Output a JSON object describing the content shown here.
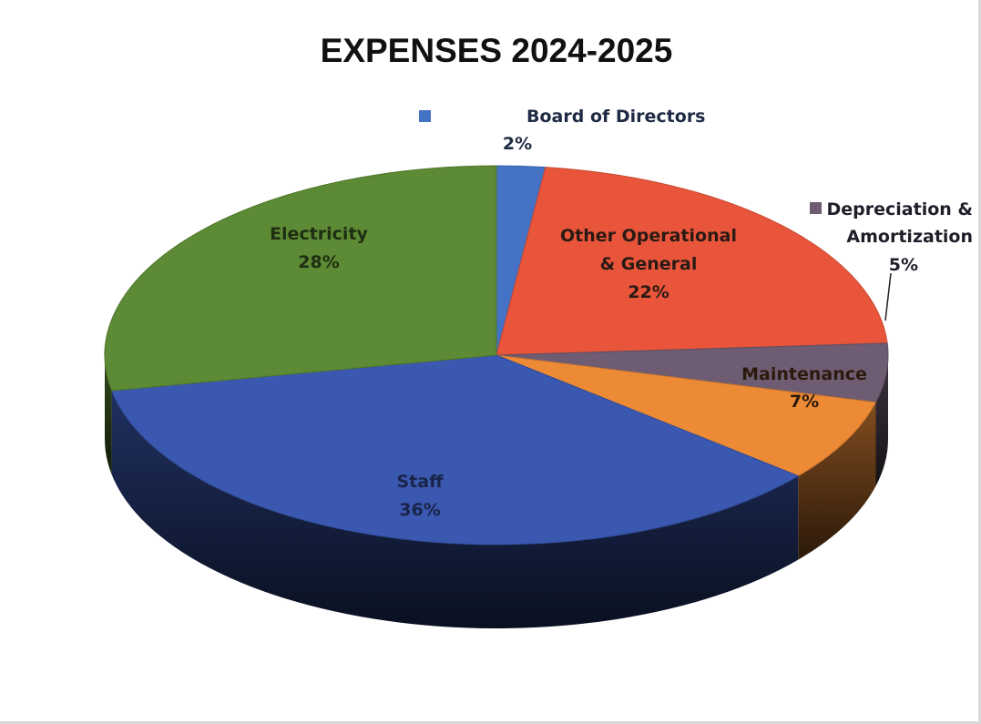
{
  "chart_data": {
    "type": "pie",
    "style": "3d",
    "title": "EXPENSES 2024-2025",
    "slices": [
      {
        "label": "Board of Directors",
        "label_lines": [
          "Board of Directors",
          "2%"
        ],
        "value": 2,
        "display": "2%",
        "color": "#4472c4",
        "legend_key": true,
        "label_color": "#1f2a44"
      },
      {
        "label": "Other Operational & General",
        "label_lines": [
          "Other Operational",
          "& General",
          "22%"
        ],
        "value": 22,
        "display": "22%",
        "color": "#e8553b",
        "legend_key": false,
        "label_color": "#2a1a14"
      },
      {
        "label": "Depreciation & Amortization",
        "label_lines": [
          "Depreciation &",
          "Amortization",
          "5%"
        ],
        "value": 5,
        "display": "5%",
        "color": "#6e5c72",
        "legend_key": true,
        "label_color": "#1f1f2a"
      },
      {
        "label": "Maintenance",
        "label_lines": [
          "Maintenance",
          "7%"
        ],
        "value": 7,
        "display": "7%",
        "color": "#ed8a36",
        "legend_key": false,
        "label_color": "#2a1a0c"
      },
      {
        "label": "Staff",
        "label_lines": [
          "Staff",
          "36%"
        ],
        "value": 36,
        "display": "36%",
        "color": "#3a58b0",
        "legend_key": false,
        "label_color": "#1a2448"
      },
      {
        "label": "Electricity",
        "label_lines": [
          "Electricity",
          "28%"
        ],
        "value": 28,
        "display": "28%",
        "color": "#5d8a34",
        "legend_key": false,
        "label_color": "#1e2e12"
      }
    ]
  }
}
